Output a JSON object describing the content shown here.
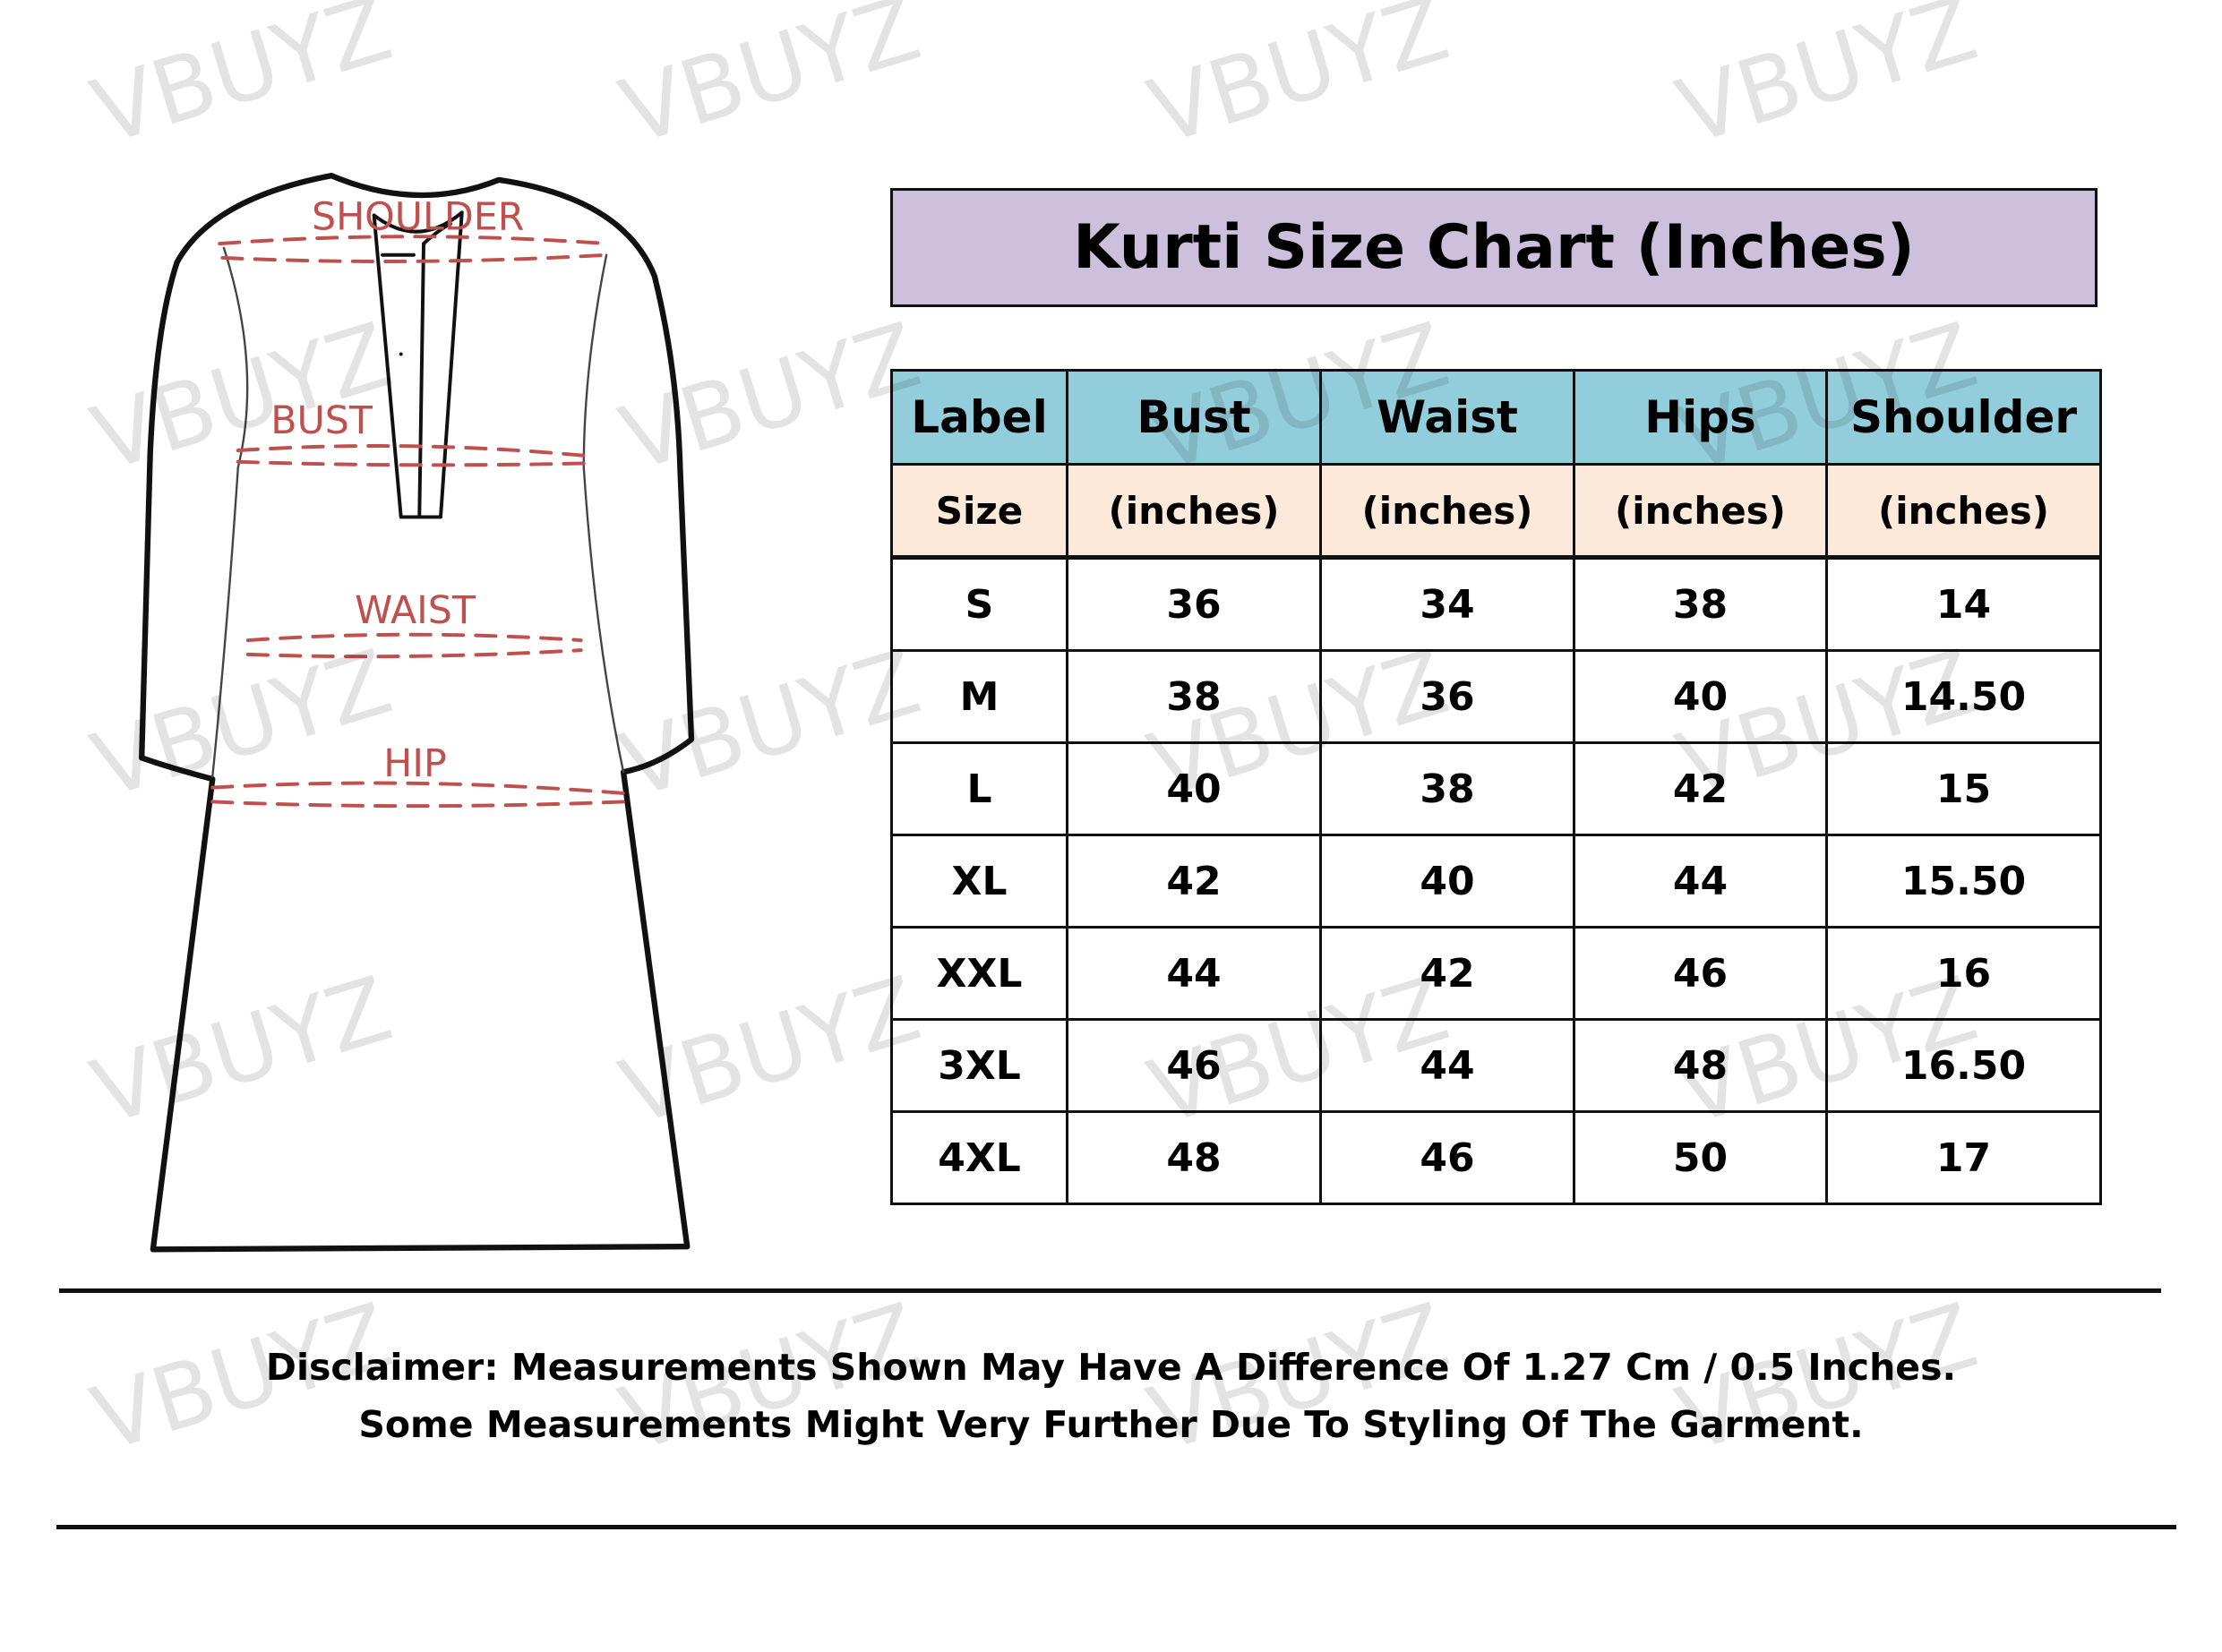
{
  "watermark": "VBUYZ",
  "diagram": {
    "labels": {
      "shoulder": "SHOULDER",
      "bust": "BUST",
      "waist": "WAIST",
      "hip": "HIP"
    },
    "outline_color": "#111111",
    "measure_color": "#c0504d"
  },
  "title": "Kurti Size Chart (Inches)",
  "colors": {
    "title_bg": "#cdc0dc",
    "header_bg": "#92cddc",
    "subheader_bg": "#fde9d9"
  },
  "table": {
    "headers": [
      "Label",
      "Bust",
      "Waist",
      "Hips",
      "Shoulder"
    ],
    "subheaders": [
      "Size",
      "(inches)",
      "(inches)",
      "(inches)",
      "(inches)"
    ],
    "rows": [
      [
        "S",
        "36",
        "34",
        "38",
        "14"
      ],
      [
        "M",
        "38",
        "36",
        "40",
        "14.50"
      ],
      [
        "L",
        "40",
        "38",
        "42",
        "15"
      ],
      [
        "XL",
        "42",
        "40",
        "44",
        "15.50"
      ],
      [
        "XXL",
        "44",
        "42",
        "46",
        "16"
      ],
      [
        "3XL",
        "46",
        "44",
        "48",
        "16.50"
      ],
      [
        "4XL",
        "48",
        "46",
        "50",
        "17"
      ]
    ]
  },
  "disclaimer": {
    "line1": "Disclaimer: Measurements Shown May Have A Difference Of 1.27 Cm / 0.5 Inches.",
    "line2": "Some Measurements Might Very Further Due To Styling Of The Garment."
  }
}
